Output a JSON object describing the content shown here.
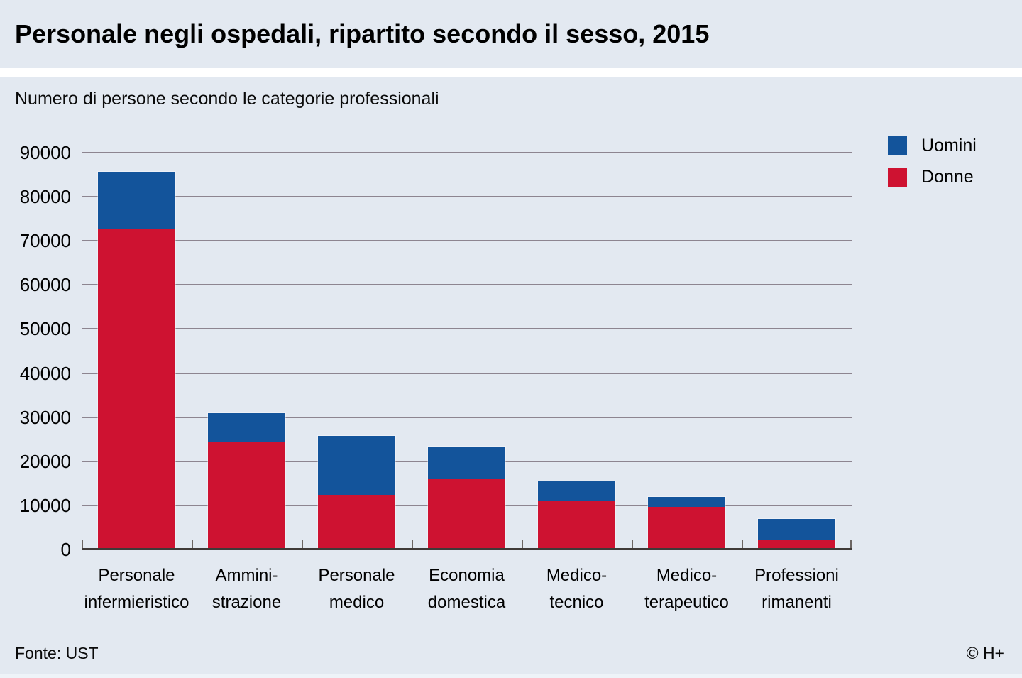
{
  "title": "Personale negli ospedali, ripartito secondo il sesso, 2015",
  "subtitle": "Numero di persone secondo le categorie professionali",
  "footer": {
    "source": "Fonte: UST",
    "copyright": "© H+"
  },
  "colors": {
    "uomini": "#13549b",
    "donne": "#ce1231",
    "background": "#e3e9f1",
    "separator": "#ffffff",
    "gridline": "#8d8590",
    "axis": "#3f3a38",
    "tick": "#6c6663",
    "text": "#000000"
  },
  "legend": {
    "items": [
      {
        "label": "Uomini",
        "color_key": "uomini"
      },
      {
        "label": "Donne",
        "color_key": "donne"
      }
    ]
  },
  "chart_data": {
    "type": "bar",
    "stacked": true,
    "title": "Personale negli ospedali, ripartito secondo il sesso, 2015",
    "subtitle": "Numero di persone secondo le categorie professionali",
    "xlabel": "",
    "ylabel": "Numero di persone",
    "categories": [
      [
        "Personale",
        "infermieristico"
      ],
      [
        "Ammini-",
        "strazione"
      ],
      [
        "Personale",
        "medico"
      ],
      [
        "Economia",
        "domestica"
      ],
      [
        "Medico-",
        "tecnico"
      ],
      [
        "Medico-",
        "terapeutico"
      ],
      [
        "Professioni",
        "rimanenti"
      ]
    ],
    "series": [
      {
        "name": "Donne",
        "color_key": "donne",
        "values": [
          72800,
          24500,
          12600,
          16100,
          11300,
          9800,
          2300
        ]
      },
      {
        "name": "Uomini",
        "color_key": "uomini",
        "values": [
          13000,
          6500,
          13300,
          7400,
          4300,
          2300,
          4800
        ]
      }
    ],
    "totals": [
      85800,
      31000,
      25900,
      23500,
      15600,
      12100,
      7100
    ],
    "ylim": [
      0,
      90000
    ],
    "ytick_step": 10000,
    "yticks": [
      "90000",
      "80000",
      "70000",
      "60000",
      "50000",
      "40000",
      "30000",
      "20000",
      "10000",
      "0"
    ],
    "grid": true,
    "legend_position": "top-right",
    "legend_entries": [
      "Uomini",
      "Donne"
    ]
  }
}
